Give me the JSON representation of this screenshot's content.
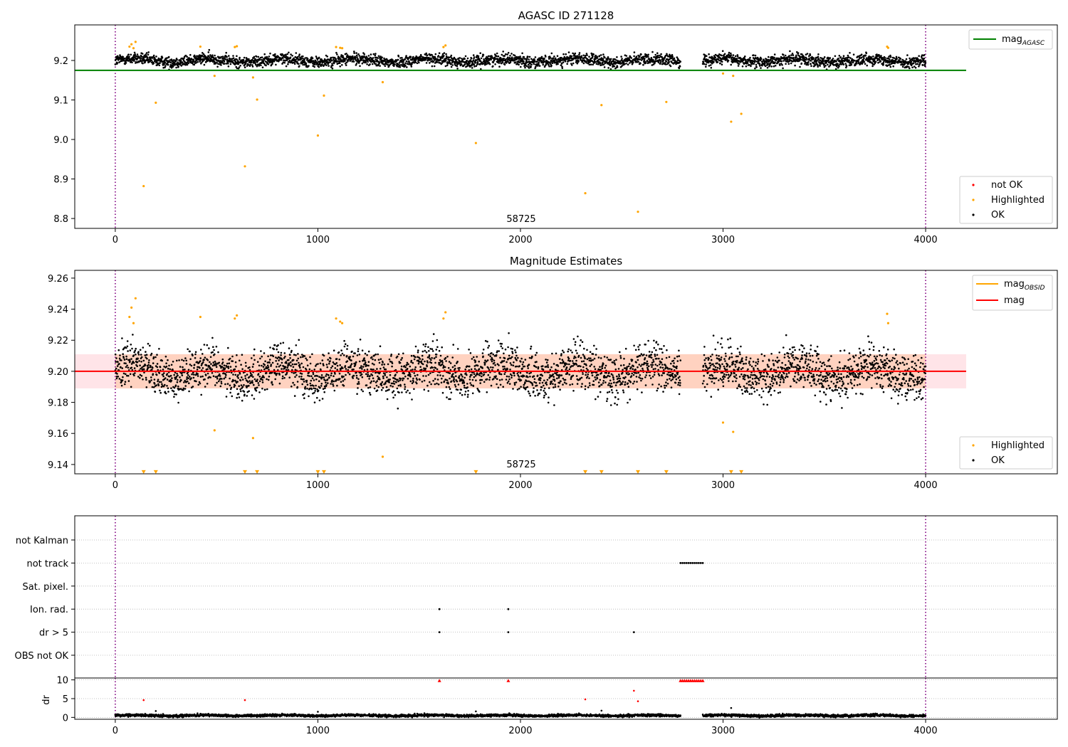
{
  "chart_data": [
    {
      "type": "scatter",
      "title": "AGASC ID 271128",
      "xlabel": "",
      "ylabel": "",
      "xlim": [
        -200,
        4650
      ],
      "ylim": [
        8.775,
        9.29
      ],
      "xticks": [
        0,
        1000,
        2000,
        3000,
        4000
      ],
      "yticks": [
        8.8,
        8.9,
        9.0,
        9.1,
        9.2
      ],
      "grid": false,
      "annotation": "58725",
      "legends": [
        {
          "placement": "top-right",
          "entries": [
            {
              "label": "mag",
              "subscript": "AGASC",
              "color": "#008000",
              "marker": "line"
            }
          ]
        },
        {
          "placement": "bottom-right",
          "entries": [
            {
              "label": "not OK",
              "color": "#ff0000",
              "marker": "dot"
            },
            {
              "label": "Highlighted",
              "color": "#ffa500",
              "marker": "dot"
            },
            {
              "label": "OK",
              "color": "#000000",
              "marker": "dot"
            }
          ]
        }
      ],
      "reference_line": {
        "name": "mag_AGASC",
        "y": 9.175,
        "x_range": [
          -200,
          4200
        ],
        "color": "#008000"
      },
      "vlines": [
        0,
        4000
      ],
      "ok_band": {
        "x_segments": [
          [
            0,
            2790
          ],
          [
            2900,
            4000
          ]
        ],
        "y_center": 9.2,
        "y_spread": 0.013
      },
      "highlighted": {
        "x": [
          70,
          80,
          90,
          100,
          140,
          200,
          420,
          490,
          590,
          600,
          640,
          680,
          700,
          1000,
          1030,
          1090,
          1110,
          1120,
          1320,
          1620,
          1630,
          1780,
          2320,
          2400,
          2580,
          2720,
          3000,
          3040,
          3050,
          3090,
          3810,
          3815
        ],
        "y": [
          9.235,
          9.241,
          9.231,
          9.247,
          8.882,
          9.093,
          9.235,
          9.161,
          9.234,
          9.236,
          8.932,
          9.157,
          9.101,
          9.01,
          9.111,
          9.234,
          9.232,
          9.231,
          9.145,
          9.234,
          9.238,
          8.991,
          8.864,
          9.087,
          8.817,
          9.095,
          9.167,
          9.045,
          9.161,
          9.065,
          9.235,
          9.232
        ]
      }
    },
    {
      "type": "scatter",
      "title": "Magnitude Estimates",
      "xlabel": "",
      "ylabel": "",
      "xlim": [
        -200,
        4650
      ],
      "ylim": [
        9.134,
        9.265
      ],
      "xticks": [
        0,
        1000,
        2000,
        3000,
        4000
      ],
      "yticks": [
        9.14,
        9.16,
        9.18,
        9.2,
        9.22,
        9.24,
        9.26
      ],
      "grid": false,
      "annotation": "58725",
      "legends": [
        {
          "placement": "top-right",
          "entries": [
            {
              "label": "mag",
              "subscript": "OBSID",
              "color": "#ffa500",
              "marker": "line"
            },
            {
              "label": "mag",
              "subscript": "",
              "color": "#ff0000",
              "marker": "line"
            }
          ]
        },
        {
          "placement": "bottom-right",
          "entries": [
            {
              "label": "Highlighted",
              "color": "#ffa500",
              "marker": "dot"
            },
            {
              "label": "OK",
              "color": "#000000",
              "marker": "dot"
            }
          ]
        }
      ],
      "mean_line": {
        "name": "mag",
        "y": 9.2,
        "x_range": [
          -200,
          4200
        ],
        "color": "#ff0000"
      },
      "bands": [
        {
          "x_range": [
            -200,
            4200
          ],
          "y_range": [
            9.189,
            9.211
          ],
          "color": "#ffe4e8"
        },
        {
          "x_range": [
            0,
            4000
          ],
          "y_range": [
            9.189,
            9.211
          ],
          "color": "#ffd2c0"
        }
      ],
      "vlines": [
        0,
        4000
      ],
      "ok_band": {
        "x_segments": [
          [
            0,
            2790
          ],
          [
            2900,
            4000
          ]
        ],
        "y_center": 9.2,
        "y_spread": 0.013
      },
      "highlighted": {
        "x": [
          70,
          80,
          90,
          100,
          420,
          490,
          590,
          600,
          680,
          1090,
          1110,
          1120,
          1320,
          1620,
          1630,
          3000,
          3050,
          3810,
          3815
        ],
        "y": [
          9.235,
          9.241,
          9.231,
          9.247,
          9.235,
          9.162,
          9.234,
          9.236,
          9.157,
          9.234,
          9.232,
          9.231,
          9.145,
          9.234,
          9.238,
          9.167,
          9.161,
          9.237,
          9.231
        ]
      },
      "out_of_range_markers": {
        "x": [
          140,
          200,
          640,
          700,
          1000,
          1030,
          1780,
          2320,
          2400,
          2580,
          2720,
          3040,
          3090
        ],
        "y": 9.135
      }
    },
    {
      "type": "scatter",
      "title": "",
      "xlabel": "",
      "ylabel": "",
      "xlim": [
        -200,
        4650
      ],
      "xticks": [
        0,
        1000,
        2000,
        3000,
        4000
      ],
      "categories": [
        "not Kalman",
        "not track",
        "Sat. pixel.",
        "Ion. rad.",
        "dr > 5",
        "OBS not OK"
      ],
      "flags": [
        {
          "category": "not track",
          "x": [
            2790,
            2800,
            2810,
            2820,
            2830,
            2840,
            2850,
            2860,
            2870,
            2880,
            2890,
            2900
          ]
        },
        {
          "category": "Ion. rad.",
          "x": [
            1600,
            1940
          ]
        },
        {
          "category": "dr > 5",
          "x": [
            1600,
            1940,
            2560
          ]
        }
      ],
      "vlines": [
        0,
        4000
      ],
      "grid": true
    },
    {
      "type": "scatter",
      "title": "",
      "xlabel": "",
      "ylabel": "dr",
      "xlim": [
        -200,
        4650
      ],
      "ylim": [
        -0.5,
        10.5
      ],
      "xticks": [
        0,
        1000,
        2000,
        3000,
        4000
      ],
      "yticks": [
        0,
        5,
        10
      ],
      "grid": true,
      "vlines": [
        0,
        4000
      ],
      "ok_band": {
        "x_segments": [
          [
            0,
            2790
          ],
          [
            2900,
            4000
          ]
        ],
        "y_center": 0.5,
        "y_spread": 0.3
      },
      "outliers": {
        "x": [
          140,
          200,
          640,
          1000,
          1780,
          2320,
          2400,
          2560,
          2580,
          3040
        ],
        "y": [
          4.6,
          1.7,
          4.6,
          1.5,
          1.6,
          4.8,
          1.8,
          7.1,
          4.3,
          2.5
        ],
        "color": [
          "#ff0000",
          "#000000",
          "#ff0000",
          "#000000",
          "#000000",
          "#ff0000",
          "#000000",
          "#ff0000",
          "#ff0000",
          "#000000"
        ]
      },
      "capped": {
        "x": [
          1600,
          1940,
          2790,
          2800,
          2810,
          2820,
          2830,
          2840,
          2850,
          2860,
          2870,
          2880,
          2890,
          2900
        ],
        "y": 9.8,
        "color": "#ff0000"
      }
    }
  ]
}
